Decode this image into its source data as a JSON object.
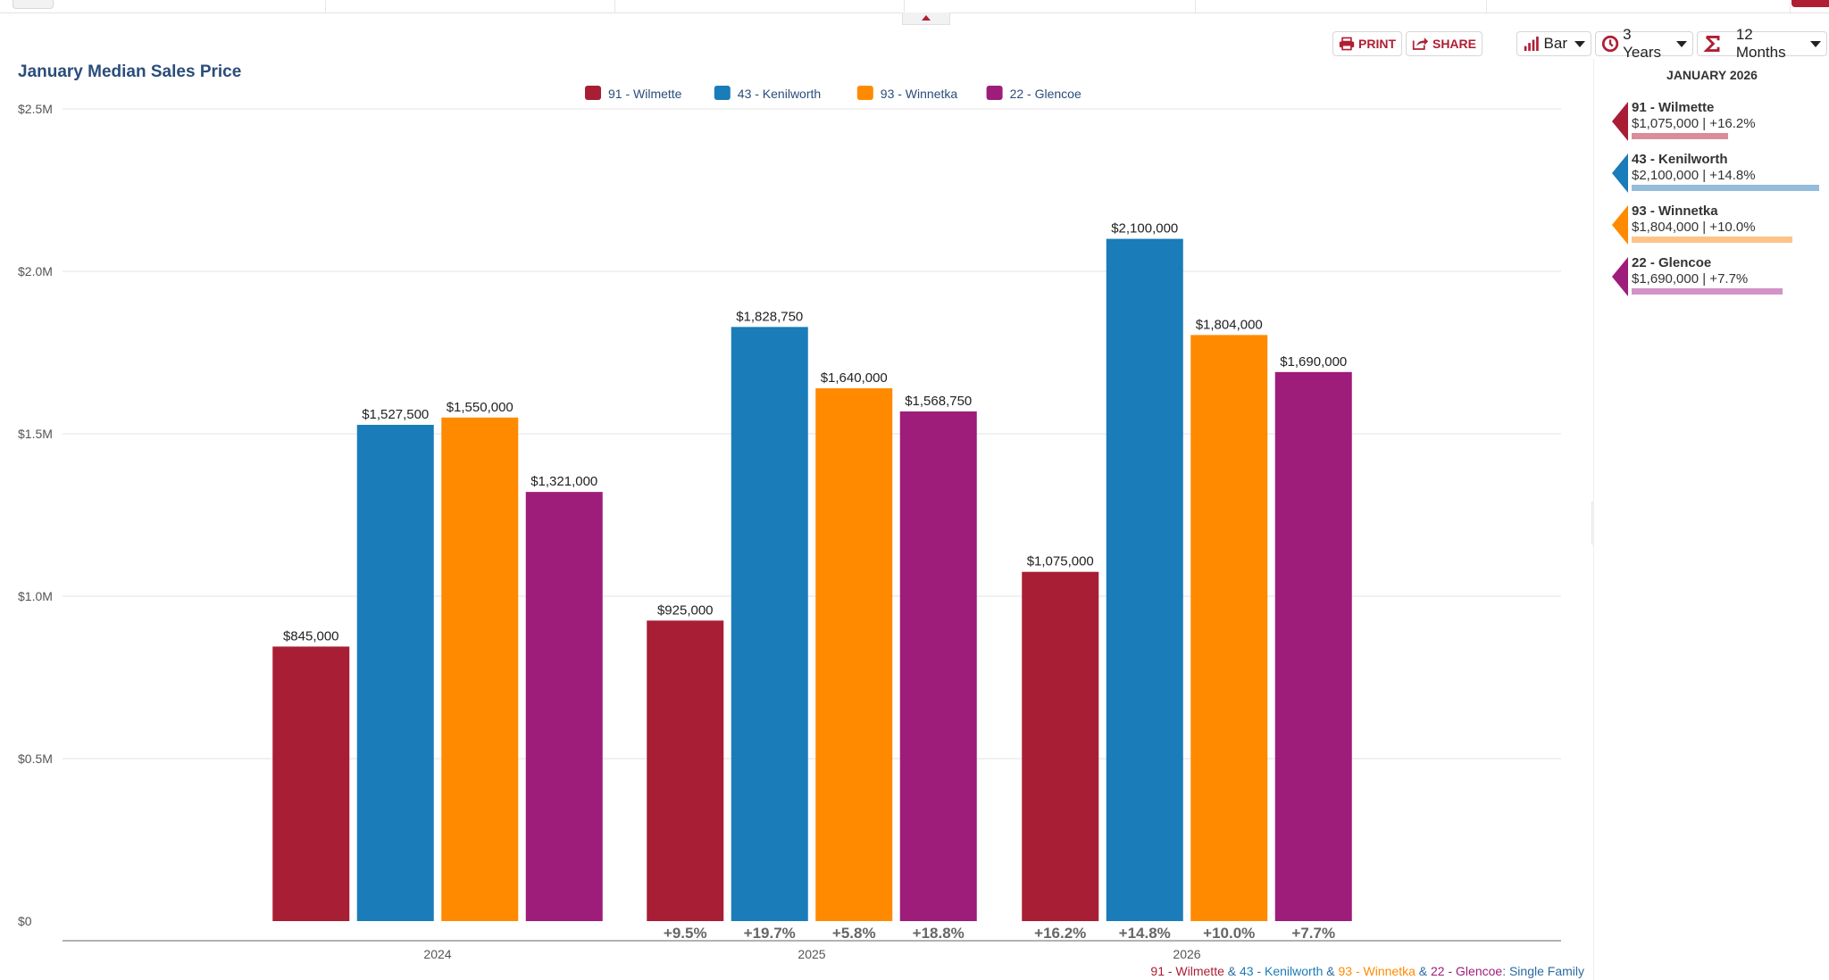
{
  "toolbar": {
    "print_label": "PRINT",
    "share_label": "SHARE",
    "chart_type_label": "Bar",
    "period_label": "3 Years",
    "rolling_label": "12 Months"
  },
  "colors": {
    "wilmette": "#a81e35",
    "kenilworth": "#1a7cb9",
    "winnetka": "#ff8a00",
    "glencoe": "#9e1c7a",
    "brand_red": "#b01e33",
    "title_blue": "#2a4d7a"
  },
  "chart_data": {
    "type": "bar",
    "title": "January Median Sales Price",
    "categories": [
      "2024",
      "2025",
      "2026"
    ],
    "series": [
      {
        "key": "wilmette",
        "name": "91 - Wilmette",
        "color": "#a81e35",
        "values": [
          845000,
          925000,
          1075000
        ],
        "labels": [
          "$845,000",
          "$925,000",
          "$1,075,000"
        ],
        "changes": [
          "",
          "+9.5%",
          "+16.2%"
        ]
      },
      {
        "key": "kenilworth",
        "name": "43 - Kenilworth",
        "color": "#1a7cb9",
        "values": [
          1527500,
          1828750,
          2100000
        ],
        "labels": [
          "$1,527,500",
          "$1,828,750",
          "$2,100,000"
        ],
        "changes": [
          "",
          "+19.7%",
          "+14.8%"
        ]
      },
      {
        "key": "winnetka",
        "name": "93 - Winnetka",
        "color": "#ff8a00",
        "values": [
          1550000,
          1640000,
          1804000
        ],
        "labels": [
          "$1,550,000",
          "$1,640,000",
          "$1,804,000"
        ],
        "changes": [
          "",
          "+5.8%",
          "+10.0%"
        ]
      },
      {
        "key": "glencoe",
        "name": "22 - Glencoe",
        "color": "#9e1c7a",
        "values": [
          1321000,
          1568750,
          1690000
        ],
        "labels": [
          "$1,321,000",
          "$1,568,750",
          "$1,690,000"
        ],
        "changes": [
          "",
          "+18.8%",
          "+7.7%"
        ]
      }
    ],
    "ylim": [
      0,
      2500000
    ],
    "yticks": [
      {
        "value": 0,
        "label": "$0"
      },
      {
        "value": 500000,
        "label": "$0.5M"
      },
      {
        "value": 1000000,
        "label": "$1.0M"
      },
      {
        "value": 1500000,
        "label": "$1.5M"
      },
      {
        "value": 2000000,
        "label": "$2.0M"
      },
      {
        "value": 2500000,
        "label": "$2.5M"
      }
    ],
    "grid": true,
    "legend": "top-center"
  },
  "sidebar": {
    "heading": "JANUARY 2026",
    "items": [
      {
        "name": "91 - Wilmette",
        "value": "$1,075,000 | +16.2%",
        "color": "#a81e35",
        "bar_color": "#d98d98",
        "amount": 1075000
      },
      {
        "name": "43 - Kenilworth",
        "value": "$2,100,000 | +14.8%",
        "color": "#1a7cb9",
        "bar_color": "#94bcdc",
        "amount": 2100000
      },
      {
        "name": "93 - Winnetka",
        "value": "$1,804,000 | +10.0%",
        "color": "#ff8a00",
        "bar_color": "#fcc48a",
        "amount": 1804000
      },
      {
        "name": "22 - Glencoe",
        "value": "$1,690,000 | +7.7%",
        "color": "#9e1c7a",
        "bar_color": "#d393c5",
        "amount": 1690000
      }
    ]
  },
  "footer": {
    "parts": [
      {
        "text": "91 - Wilmette",
        "color": "#a81e35"
      },
      {
        "text": " & ",
        "color": "#2a6aa0"
      },
      {
        "text": "43 - Kenilworth",
        "color": "#1a7cb9"
      },
      {
        "text": " & ",
        "color": "#2a6aa0"
      },
      {
        "text": "93 - Winnetka",
        "color": "#ff8a00"
      },
      {
        "text": " & ",
        "color": "#2a6aa0"
      },
      {
        "text": "22 - Glencoe",
        "color": "#9e1c7a"
      },
      {
        "text": ": Single Family",
        "color": "#2a6aa0"
      }
    ]
  }
}
